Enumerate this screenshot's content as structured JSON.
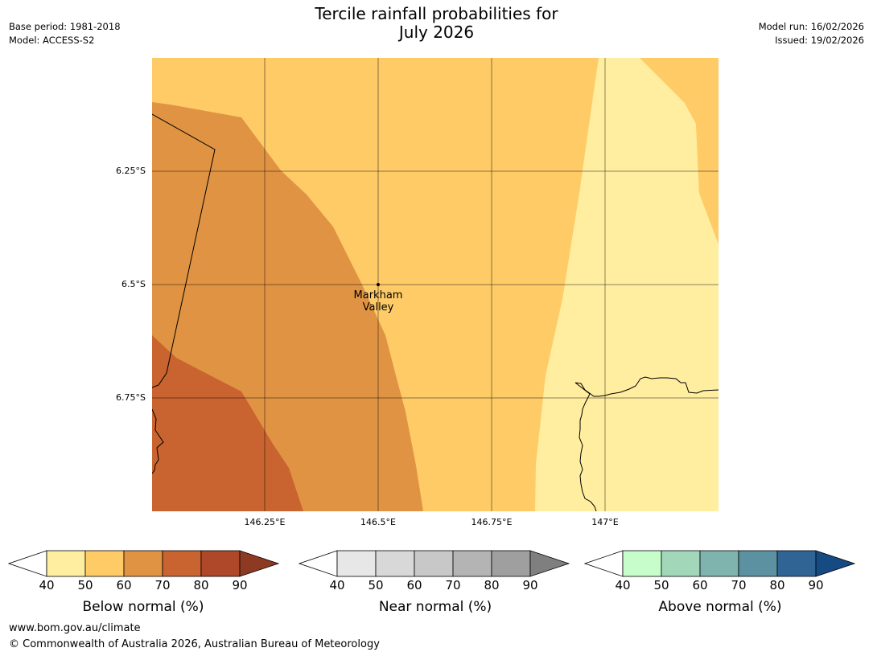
{
  "header": {
    "title_line1": "Tercile rainfall probabilities for",
    "title_line2": "July 2026",
    "base_period": "Base period: 1981-2018",
    "model": "Model: ACCESS-S2",
    "model_run": "Model run: 16/02/2026",
    "issued": "Issued: 19/02/2026"
  },
  "map": {
    "lat_labels": [
      "6.25°S",
      "6.5°S",
      "6.75°S"
    ],
    "lon_labels": [
      "146.25°E",
      "146.5°E",
      "146.75°E",
      "147°E"
    ],
    "place": {
      "line1": "Markham",
      "line2": "Valley"
    }
  },
  "colorbars": [
    {
      "title": "Below normal (%)",
      "ticks": [
        "40",
        "50",
        "60",
        "70",
        "80",
        "90"
      ],
      "colors": [
        "#ffffff",
        "#ffeda0",
        "#fecb67",
        "#e09443",
        "#c96330",
        "#ae4828",
        "#8e3a23"
      ]
    },
    {
      "title": "Near normal (%)",
      "ticks": [
        "40",
        "50",
        "60",
        "70",
        "80",
        "90"
      ],
      "colors": [
        "#ffffff",
        "#e7e7e7",
        "#d8d8d8",
        "#c8c8c8",
        "#b4b4b4",
        "#9f9f9f",
        "#7f7f7f"
      ]
    },
    {
      "title": "Above normal (%)",
      "ticks": [
        "40",
        "50",
        "60",
        "70",
        "80",
        "90"
      ],
      "colors": [
        "#ffffff",
        "#c7fdcb",
        "#a2d8b9",
        "#7fb3ae",
        "#5b91a0",
        "#306494",
        "#154a83"
      ]
    }
  ],
  "footer": {
    "url": "www.bom.gov.au/climate",
    "copyright": "© Commonwealth of Australia 2026, Australian Bureau of Meteorology"
  }
}
